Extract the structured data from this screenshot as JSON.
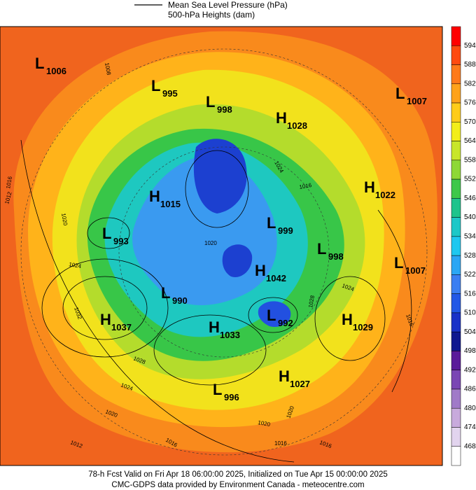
{
  "legend": {
    "line_label": "Mean Sea Level Pressure (hPa)",
    "fill_label": "500-hPa Heights (dam)"
  },
  "colorbar": {
    "labels": [
      594,
      588,
      582,
      576,
      570,
      564,
      558,
      552,
      546,
      540,
      534,
      528,
      522,
      516,
      510,
      504,
      498,
      492,
      486,
      480,
      474,
      468
    ],
    "colors": [
      "#ff0000",
      "#ff4a10",
      "#ff7a1a",
      "#ffa21a",
      "#ffcc1a",
      "#f2ee1a",
      "#c8e62a",
      "#8ed836",
      "#3ec84a",
      "#1ec48c",
      "#1cc8c8",
      "#1ec8f0",
      "#2aa6f4",
      "#3a7ef2",
      "#2258e6",
      "#1a32c8",
      "#101890",
      "#5a1a9a",
      "#7a46b4",
      "#a07ac8",
      "#c8aadc",
      "#e2d4ee",
      "#ffffff"
    ]
  },
  "centers": [
    {
      "type": "L",
      "value": 1006
    },
    {
      "type": "L",
      "value": 995
    },
    {
      "type": "L",
      "value": 998
    },
    {
      "type": "H",
      "value": 1028
    },
    {
      "type": "L",
      "value": 1007
    },
    {
      "type": "H",
      "value": 1015
    },
    {
      "type": "H",
      "value": 1022
    },
    {
      "type": "L",
      "value": 993
    },
    {
      "type": "L",
      "value": 999
    },
    {
      "type": "L",
      "value": 998
    },
    {
      "type": "L",
      "value": 1007
    },
    {
      "type": "H",
      "value": 1042
    },
    {
      "type": "L",
      "value": 990
    },
    {
      "type": "H",
      "value": 1037
    },
    {
      "type": "L",
      "value": 992
    },
    {
      "type": "H",
      "value": 1029
    },
    {
      "type": "H",
      "value": 1033
    },
    {
      "type": "H",
      "value": 1027
    },
    {
      "type": "L",
      "value": 996
    }
  ],
  "isobar_labels": [
    1016,
    1012,
    1020,
    1024,
    1032,
    1028,
    1024,
    1020,
    1012,
    1016,
    1020,
    1020,
    1016,
    1016,
    1024,
    1028,
    1016,
    1016,
    1024,
    1020,
    1008
  ],
  "footer": {
    "line1": "78-h Fcst Valid on Fri Apr 18 06:00:00 2025, Initialized on Tue Apr 15 00:00:00 2025",
    "line2": "CMC-GDPS data provided by Environment Canada - meteocentre.com"
  }
}
